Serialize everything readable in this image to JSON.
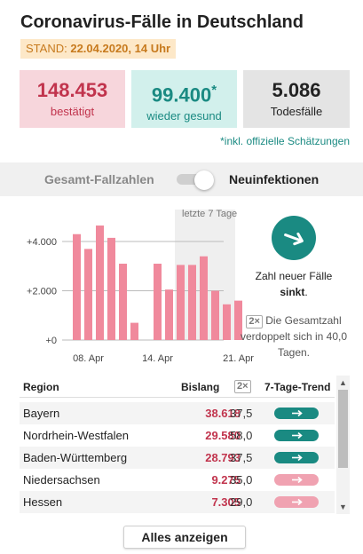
{
  "header": {
    "title": "Coronavirus-Fälle in Deutschland",
    "stand_label": "STAND:",
    "stand_value": "22.04.2020, 14 Uhr"
  },
  "cards": {
    "confirmed": {
      "value": "148.453",
      "label": "bestätigt"
    },
    "recovered": {
      "value": "99.400",
      "asterisk": "*",
      "label": "wieder gesund"
    },
    "deaths": {
      "value": "5.086",
      "label": "Todesfälle"
    }
  },
  "note": {
    "asterisk": "*",
    "text": "inkl. offizielle Schätzungen"
  },
  "tabs": {
    "left": "Gesamt-Fallzahlen",
    "right": "Neuinfektionen",
    "active": "right"
  },
  "chart_data": {
    "type": "bar",
    "highlight_label": "letzte 7 Tage",
    "x_ticks": [
      "08. Apr",
      "14. Apr",
      "21. Apr"
    ],
    "y_ticks": [
      "+0",
      "+2.000",
      "+4.000"
    ],
    "ylim": [
      0,
      5300
    ],
    "days": [
      "07. Apr",
      "08. Apr",
      "09. Apr",
      "10. Apr",
      "11. Apr",
      "12. Apr",
      "13. Apr",
      "14. Apr",
      "15. Apr",
      "16. Apr",
      "17. Apr",
      "18. Apr",
      "19. Apr",
      "20. Apr",
      "21. Apr",
      "22. Apr"
    ],
    "values": [
      4300,
      3700,
      4650,
      4150,
      3100,
      700,
      0,
      3100,
      2050,
      3050,
      3050,
      3400,
      2000,
      1450,
      1600,
      0
    ],
    "color": "#f0899c",
    "highlight_start_index": 9
  },
  "trend": {
    "icon": "arrow-right-icon",
    "text_line1": "Zahl neuer Fälle",
    "text_bold": "sinkt",
    "text_end": ".",
    "doubling_badge": "2×",
    "doubling_text": "Die Gesamtzahl verdoppelt sich in 40,0 Tagen."
  },
  "table": {
    "headers": {
      "region": "Region",
      "bislang": "Bislang",
      "dbl": "2×",
      "trend": "7-Tage-Trend"
    },
    "rows": [
      {
        "region": "Bayern",
        "bislang": "38.618",
        "dbl": "37,5",
        "trend": "green"
      },
      {
        "region": "Nordrhein-Westfalen",
        "bislang": "29.580",
        "dbl": "58,0",
        "trend": "green"
      },
      {
        "region": "Baden-Württemberg",
        "bislang": "28.793",
        "dbl": "37,5",
        "trend": "green"
      },
      {
        "region": "Niedersachsen",
        "bislang": "9.275",
        "dbl": "35,0",
        "trend": "pink"
      },
      {
        "region": "Hessen",
        "bislang": "7.305",
        "dbl": "29,0",
        "trend": "pink"
      }
    ]
  },
  "show_all_label": "Alles anzeigen",
  "colors": {
    "red": "#c1344d",
    "teal": "#1a8a82",
    "pink": "#f0a2b1",
    "bar": "#f0899c"
  }
}
